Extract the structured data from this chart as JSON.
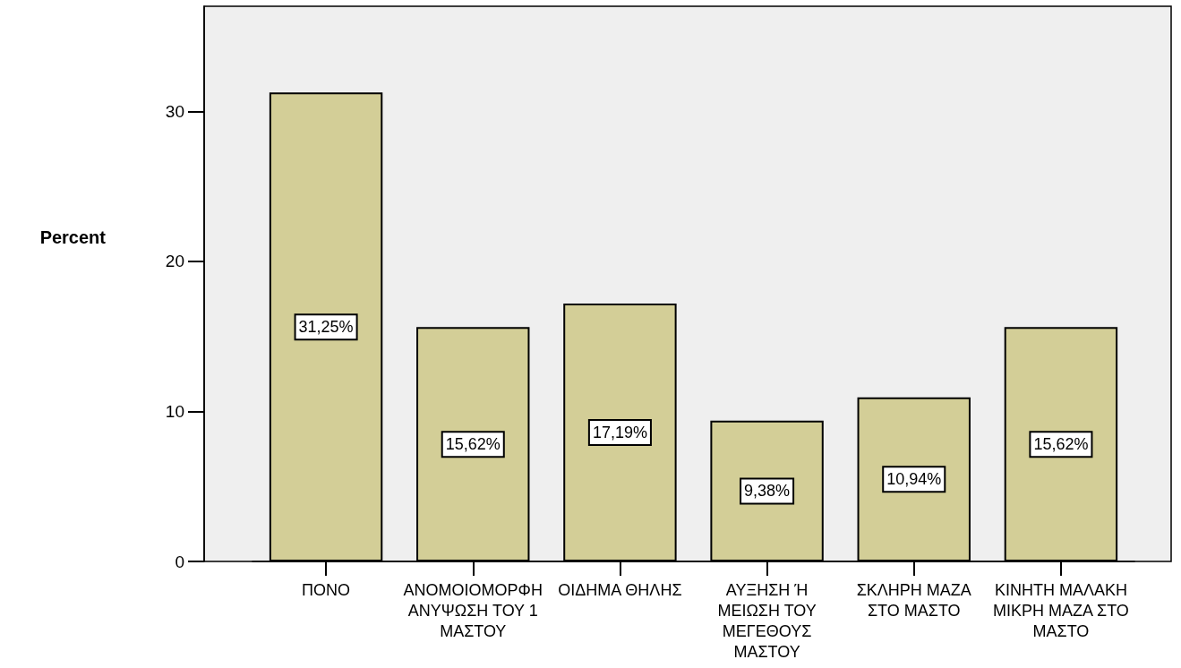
{
  "chart_data": {
    "type": "bar",
    "ylabel": "Percent",
    "categories": [
      "ΠΟΝΟ",
      "ΑΝΟΜΟΙΟΜΟΡΦΗ ΑΝΥΨΩΣΗ ΤΟΥ 1 ΜΑΣΤΟΥ",
      "ΟΙΔΗΜΑ ΘΗΛΗΣ",
      "ΑΥΞΗΣΗ Ή ΜΕΙΩΣΗ ΤΟΥ ΜΕΓΕΘΟΥΣ ΜΑΣΤΟΥ",
      "ΣΚΛΗΡΗ ΜΑΖΑ ΣΤΟ ΜΑΣΤΟ",
      "ΚΙΝΗΤΗ ΜΑΛΑΚΗ ΜΙΚΡΗ ΜΑΖΑ ΣΤΟ ΜΑΣΤΟ"
    ],
    "values": [
      31.25,
      15.62,
      17.19,
      9.38,
      10.94,
      15.62
    ],
    "value_labels": [
      "31,25%",
      "15,62%",
      "17,19%",
      "9,38%",
      "10,94%",
      "15,62%"
    ],
    "color": "#d3ce97",
    "ylim": [
      0,
      37
    ],
    "yticks": [
      0,
      10,
      20,
      30
    ]
  }
}
